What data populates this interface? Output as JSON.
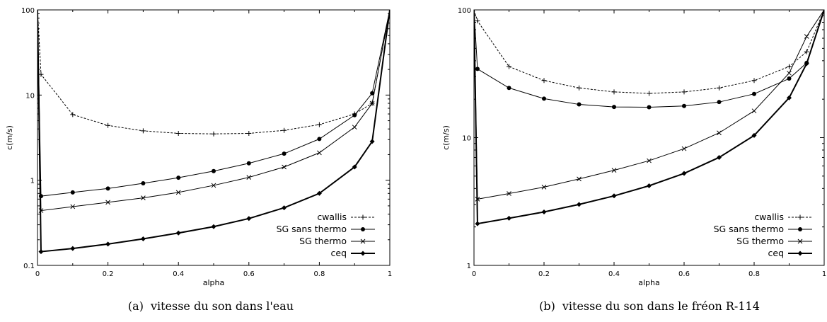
{
  "chart_data": [
    {
      "type": "line",
      "caption_label": "(a)",
      "caption_text": "vitesse du son dans l'eau",
      "xlabel": "alpha",
      "ylabel": "c(m/s)",
      "xlim": [
        0,
        1
      ],
      "ylim": [
        0.1,
        100
      ],
      "yscale": "log",
      "grid": false,
      "legend_position": "bottom-right",
      "x_ticks": [
        "0",
        "0.2",
        "0.4",
        "0.6",
        "0.8",
        "1"
      ],
      "y_ticks": [
        "0.1",
        "1",
        "10",
        "100"
      ],
      "series": [
        {
          "name": "cwallis",
          "style": "dashed",
          "marker": "plus",
          "x": [
            0,
            0.01,
            0.1,
            0.2,
            0.3,
            0.4,
            0.5,
            0.6,
            0.7,
            0.8,
            0.9,
            0.95,
            1
          ],
          "y": [
            100,
            17.5,
            5.9,
            4.4,
            3.8,
            3.55,
            3.5,
            3.55,
            3.85,
            4.5,
            6.0,
            8.0,
            100
          ]
        },
        {
          "name": "SG sans thermo",
          "style": "solid",
          "marker": "circle",
          "x": [
            0,
            0.01,
            0.1,
            0.2,
            0.3,
            0.4,
            0.5,
            0.6,
            0.7,
            0.8,
            0.9,
            0.95,
            1
          ],
          "y": [
            100,
            0.65,
            0.72,
            0.8,
            0.92,
            1.07,
            1.28,
            1.58,
            2.05,
            3.05,
            5.8,
            10.5,
            100
          ]
        },
        {
          "name": "SG thermo",
          "style": "solid",
          "marker": "cross",
          "x": [
            0,
            0.01,
            0.1,
            0.2,
            0.3,
            0.4,
            0.5,
            0.6,
            0.7,
            0.8,
            0.9,
            0.95,
            1
          ],
          "y": [
            100,
            0.44,
            0.49,
            0.55,
            0.62,
            0.72,
            0.87,
            1.08,
            1.43,
            2.1,
            4.2,
            8.0,
            100
          ]
        },
        {
          "name": "ceq",
          "style": "bold",
          "marker": "diamond",
          "x": [
            0,
            0.01,
            0.1,
            0.2,
            0.3,
            0.4,
            0.5,
            0.6,
            0.7,
            0.8,
            0.9,
            0.95,
            1
          ],
          "y": [
            100,
            0.145,
            0.158,
            0.178,
            0.205,
            0.24,
            0.285,
            0.355,
            0.475,
            0.7,
            1.43,
            2.85,
            100
          ]
        }
      ]
    },
    {
      "type": "line",
      "caption_label": "(b)",
      "caption_text": "vitesse du son dans le fréon R-114",
      "xlabel": "alpha",
      "ylabel": "c(m/s)",
      "xlim": [
        0,
        1
      ],
      "ylim": [
        1,
        100
      ],
      "yscale": "log",
      "grid": false,
      "legend_position": "bottom-right",
      "x_ticks": [
        "0",
        "0.2",
        "0.4",
        "0.6",
        "0.8",
        "1"
      ],
      "y_ticks": [
        "1",
        "10",
        "100"
      ],
      "series": [
        {
          "name": "cwallis",
          "style": "dashed",
          "marker": "plus",
          "x": [
            0,
            0.01,
            0.1,
            0.2,
            0.3,
            0.4,
            0.5,
            0.6,
            0.7,
            0.8,
            0.9,
            0.95,
            1
          ],
          "y": [
            100,
            82,
            36,
            28,
            24.5,
            22.8,
            22.2,
            22.8,
            24.5,
            28,
            36,
            47,
            100
          ]
        },
        {
          "name": "SG sans thermo",
          "style": "solid",
          "marker": "circle",
          "x": [
            0,
            0.01,
            0.1,
            0.2,
            0.3,
            0.4,
            0.5,
            0.6,
            0.7,
            0.8,
            0.9,
            0.95,
            1
          ],
          "y": [
            100,
            34.5,
            24.5,
            20.2,
            18.2,
            17.4,
            17.3,
            17.7,
            19.0,
            22.0,
            29.0,
            38.5,
            100
          ]
        },
        {
          "name": "SG thermo",
          "style": "solid",
          "marker": "cross",
          "x": [
            0,
            0.01,
            0.1,
            0.2,
            0.3,
            0.4,
            0.5,
            0.6,
            0.7,
            0.8,
            0.9,
            0.95,
            1
          ],
          "y": [
            100,
            3.3,
            3.65,
            4.1,
            4.75,
            5.55,
            6.6,
            8.2,
            10.9,
            16.2,
            32,
            62,
            100
          ]
        },
        {
          "name": "ceq",
          "style": "bold",
          "marker": "diamond",
          "x": [
            0,
            0.01,
            0.1,
            0.2,
            0.3,
            0.4,
            0.5,
            0.6,
            0.7,
            0.8,
            0.9,
            0.95,
            1
          ],
          "y": [
            100,
            2.12,
            2.34,
            2.62,
            3.0,
            3.5,
            4.2,
            5.25,
            7.0,
            10.4,
            20.5,
            38,
            100
          ]
        }
      ]
    }
  ]
}
